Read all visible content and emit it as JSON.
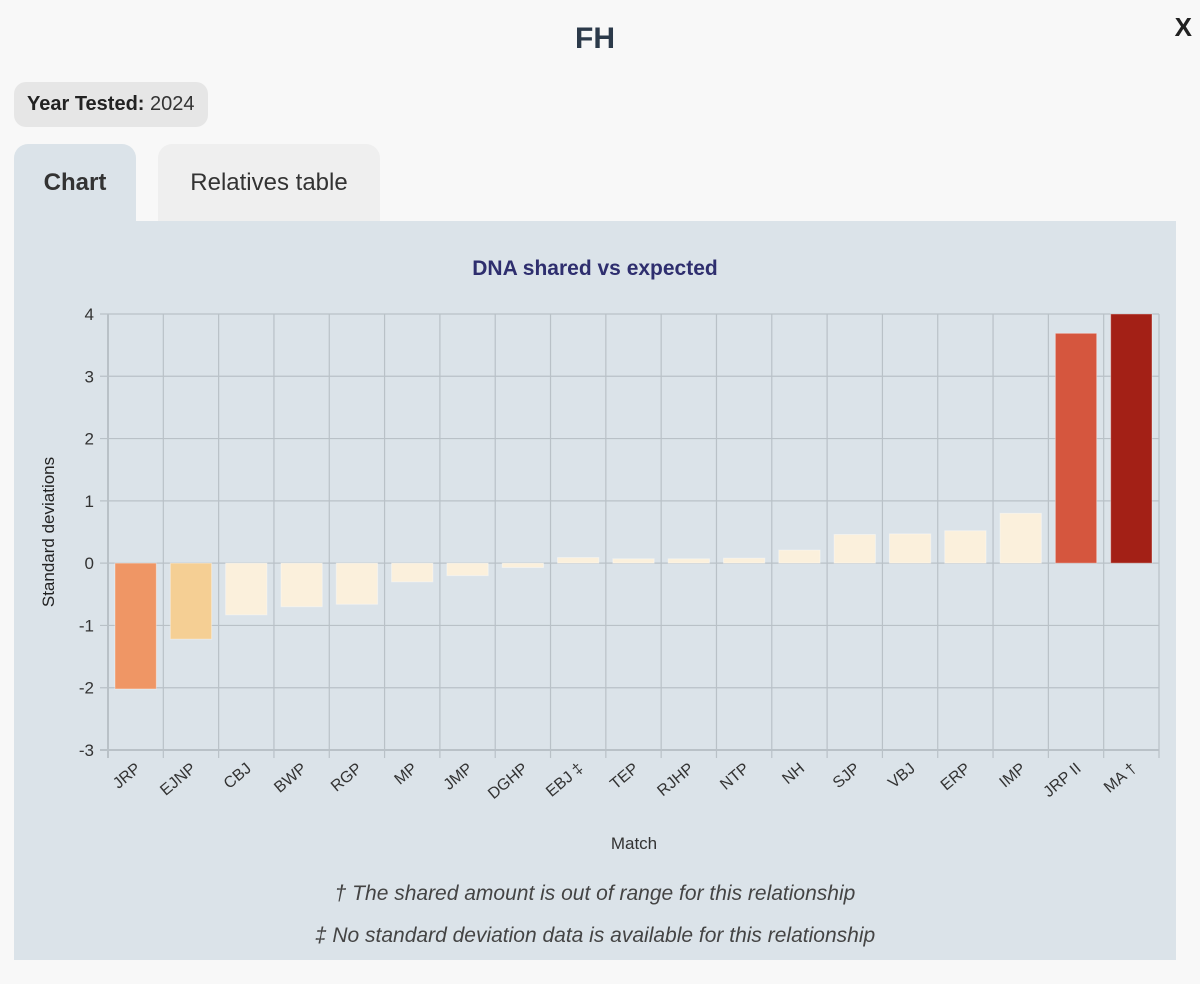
{
  "header": {
    "title": "FH",
    "close_label": "X"
  },
  "year_badge": {
    "label": "Year Tested:",
    "value": "2024"
  },
  "tabs": [
    {
      "label": "Chart",
      "active": true
    },
    {
      "label": "Relatives table",
      "active": false
    }
  ],
  "chart_data": {
    "type": "bar",
    "title": "DNA shared vs expected",
    "xlabel": "Match",
    "ylabel": "Standard deviations",
    "ylim": [
      -3,
      4
    ],
    "yticks": [
      4,
      3,
      2,
      1,
      0,
      -1,
      -2,
      -3
    ],
    "grid": true,
    "categories": [
      "JRP",
      "EJNP",
      "CBJ",
      "BWP",
      "RGP",
      "MP",
      "JMP",
      "DGHP",
      "EBJ ‡",
      "TEP",
      "RJHP",
      "NTP",
      "NH",
      "SJP",
      "VBJ",
      "ERP",
      "IMP",
      "JRP II",
      "MA †"
    ],
    "values": [
      -2.02,
      -1.22,
      -0.83,
      -0.7,
      -0.66,
      -0.3,
      -0.2,
      -0.07,
      0.09,
      0.07,
      0.07,
      0.08,
      0.21,
      0.46,
      0.47,
      0.52,
      0.8,
      3.69,
      4.0
    ],
    "colors": [
      "#ef9665",
      "#f5cf94",
      "#fbf0dc",
      "#fbf0dc",
      "#fbf0dc",
      "#fbf0dc",
      "#fbf0dc",
      "#fbf0dc",
      "#fbf0dc",
      "#fbf0dc",
      "#fbf0dc",
      "#fbf0dc",
      "#fbf0dc",
      "#fbf0dc",
      "#fbf0dc",
      "#fbf0dc",
      "#fbf0dc",
      "#d5563e",
      "#a32016"
    ]
  },
  "footnotes": [
    "† The shared amount is out of range for this relationship",
    "‡ No standard deviation data is available for this relationship"
  ]
}
